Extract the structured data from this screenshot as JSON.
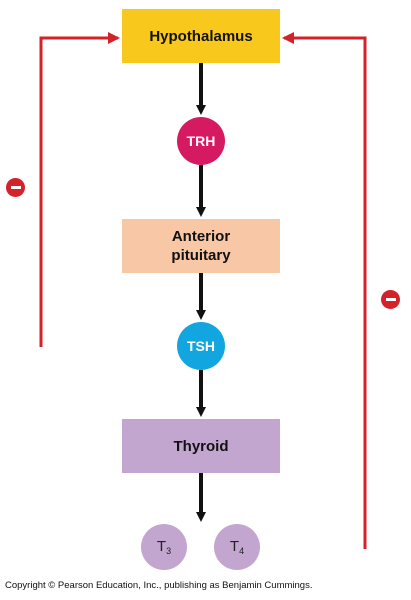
{
  "nodes": {
    "hypothalamus": "Hypothalamus",
    "trh": "TRH",
    "pituitary_line1": "Anterior",
    "pituitary_line2": "pituitary",
    "tsh": "TSH",
    "thyroid": "Thyroid",
    "t3_base": "T",
    "t3_sub": "3",
    "t4_base": "T",
    "t4_sub": "4"
  },
  "feedback": {
    "left_sign": "−",
    "right_sign": "−"
  },
  "copyright": "Copyright © Pearson Education, Inc., publishing as Benjamin Cummings.",
  "colors": {
    "hypothalamus": "#f9c81c",
    "pituitary": "#f8c7a6",
    "thyroid": "#c2a6cf",
    "trh": "#d61a61",
    "tsh": "#12a6e0",
    "feedback": "#d3222a",
    "arrow": "#111111"
  }
}
